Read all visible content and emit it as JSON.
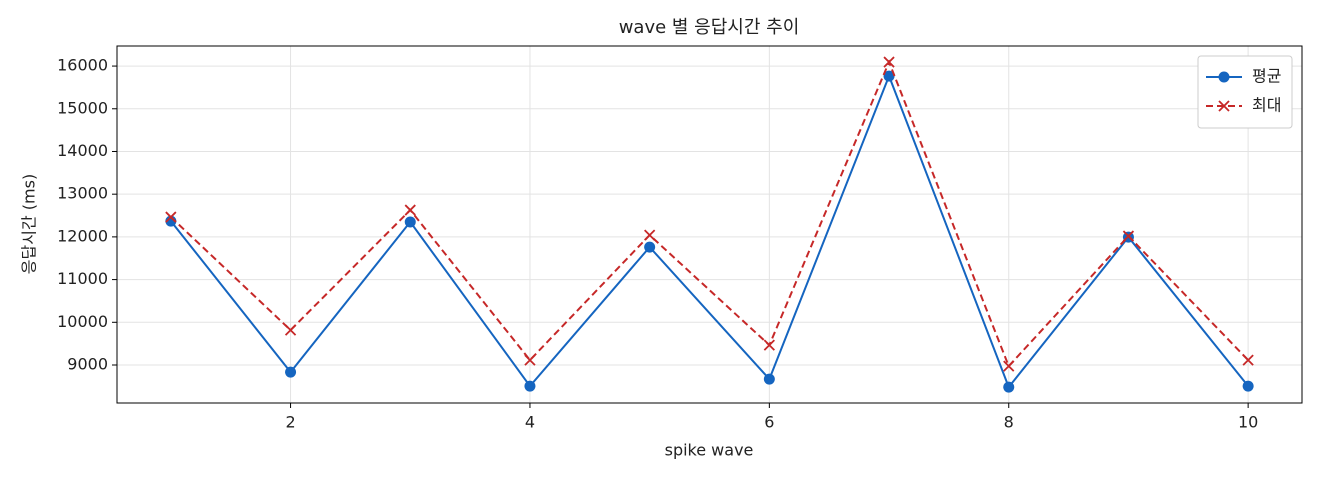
{
  "chart_data": {
    "type": "line",
    "title": "wave 별 응답시간 추이",
    "x_label": "spike wave",
    "y_label": "응답시간 (ms)",
    "x": [
      1,
      2,
      3,
      4,
      5,
      6,
      7,
      8,
      9,
      10
    ],
    "series": [
      {
        "name": "평균",
        "color": "#1565c0",
        "marker": "o",
        "linestyle": "solid",
        "values": [
          12370,
          8834,
          12350,
          8506,
          11761,
          8670,
          15766,
          8482,
          11995,
          8506
        ]
      },
      {
        "name": "최대",
        "color": "#c62828",
        "marker": "x",
        "linestyle": "dashed",
        "values": [
          12464,
          9817,
          12628,
          9115,
          12042,
          9466,
          16094,
          8974,
          12019,
          9115
        ]
      }
    ],
    "xlim": [
      0.55,
      10.45
    ],
    "xticks": [
      2,
      4,
      6,
      8,
      10
    ],
    "ylim": [
      8110,
      16470
    ],
    "yticks": [
      9000,
      10000,
      11000,
      12000,
      13000,
      14000,
      15000,
      16000
    ],
    "grid": true,
    "legend": "upper right"
  }
}
